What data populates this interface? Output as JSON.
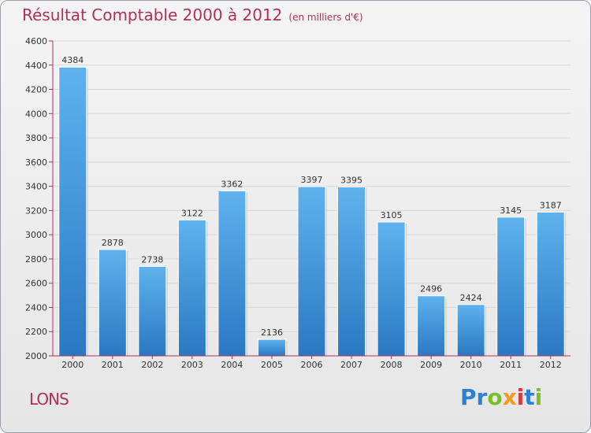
{
  "header": {
    "title": "Résultat Comptable 2000 à 2012",
    "subtitle": "(en milliers d'€)"
  },
  "footer": {
    "town": "LONS",
    "brand": "Proxiti"
  },
  "brand_letters": [
    {
      "ch": "P",
      "color": "#2e7fd6"
    },
    {
      "ch": "r",
      "color": "#2e7fd6"
    },
    {
      "ch": "o",
      "color": "#7cbf2a"
    },
    {
      "ch": "x",
      "color": "#f19a1b"
    },
    {
      "ch": "i",
      "color": "#d63a3a"
    },
    {
      "ch": "t",
      "color": "#2e7fd6"
    },
    {
      "ch": "i",
      "color": "#7cbf2a"
    }
  ],
  "chart_data": {
    "type": "bar",
    "title": "Résultat Comptable 2000 à 2012",
    "subtitle": "(en milliers d'€)",
    "categories": [
      "2000",
      "2001",
      "2002",
      "2003",
      "2004",
      "2005",
      "2006",
      "2007",
      "2008",
      "2009",
      "2010",
      "2011",
      "2012"
    ],
    "values": [
      4384,
      2878,
      2738,
      3122,
      3362,
      2136,
      3397,
      3395,
      3105,
      2496,
      2424,
      3145,
      3187
    ],
    "ylim": [
      2000,
      4600
    ],
    "yticks": [
      2000,
      2200,
      2400,
      2600,
      2800,
      3000,
      3200,
      3400,
      3600,
      3800,
      4000,
      4200,
      4400,
      4600
    ],
    "grid": true,
    "bar_color": "#3d8fd9",
    "axis_color": "#b0305a"
  }
}
